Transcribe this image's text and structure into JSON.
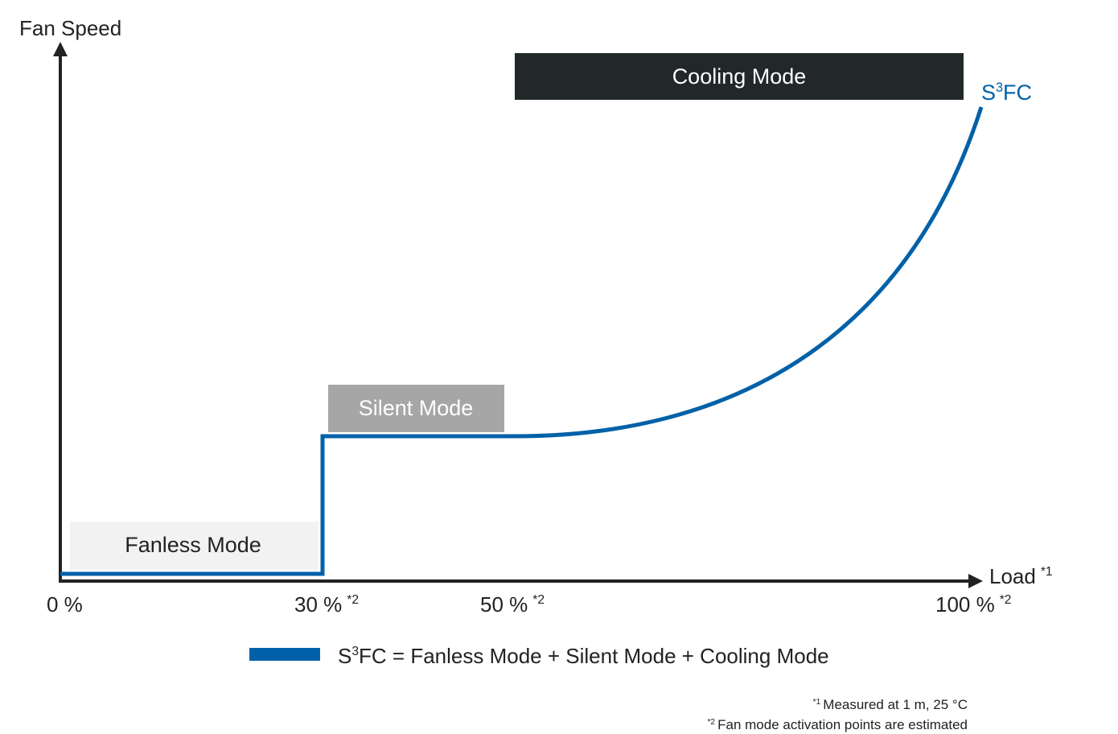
{
  "axes": {
    "y_label": "Fan Speed",
    "x_label": {
      "text": "Load",
      "note": "*1"
    },
    "x_ticks": [
      {
        "text": "0 %"
      },
      {
        "text": "30 %",
        "note": "*2"
      },
      {
        "text": "50 %",
        "note": "*2"
      },
      {
        "text": "100 %",
        "note": "*2"
      }
    ]
  },
  "modes": {
    "fanless": "Fanless Mode",
    "silent": "Silent Mode",
    "cooling": "Cooling Mode"
  },
  "curve_label": {
    "base": "S",
    "sup": "3",
    "rest": "FC"
  },
  "legend": {
    "base": "S",
    "sup": "3",
    "rest": "FC = Fanless Mode + Silent Mode + Cooling Mode"
  },
  "footnotes": [
    {
      "marker": "*1",
      "text": "Measured at 1 m, 25 °C"
    },
    {
      "marker": "*2",
      "text": "Fan mode activation points are estimated"
    }
  ]
}
